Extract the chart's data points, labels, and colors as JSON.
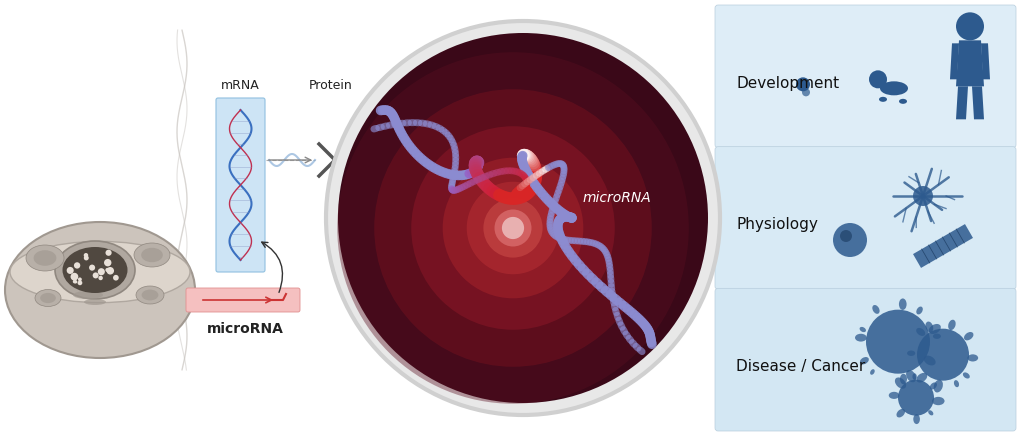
{
  "bg_color": "#ffffff",
  "panel_colors": [
    "#deedf7",
    "#d8eaf5",
    "#d3e7f3"
  ],
  "panel_border": "#b8cedd",
  "dark_blue": "#2a4a7f",
  "icon_blue": "#2d5a8e",
  "labels": {
    "mrna": "mRNA",
    "protein": "Protein",
    "microrna": "microRNA",
    "microrna_italic": "microRNA",
    "development": "Development",
    "physiology": "Physiology",
    "disease": "Disease / Cancer"
  },
  "figsize": [
    10.24,
    4.33
  ],
  "dpi": 100
}
